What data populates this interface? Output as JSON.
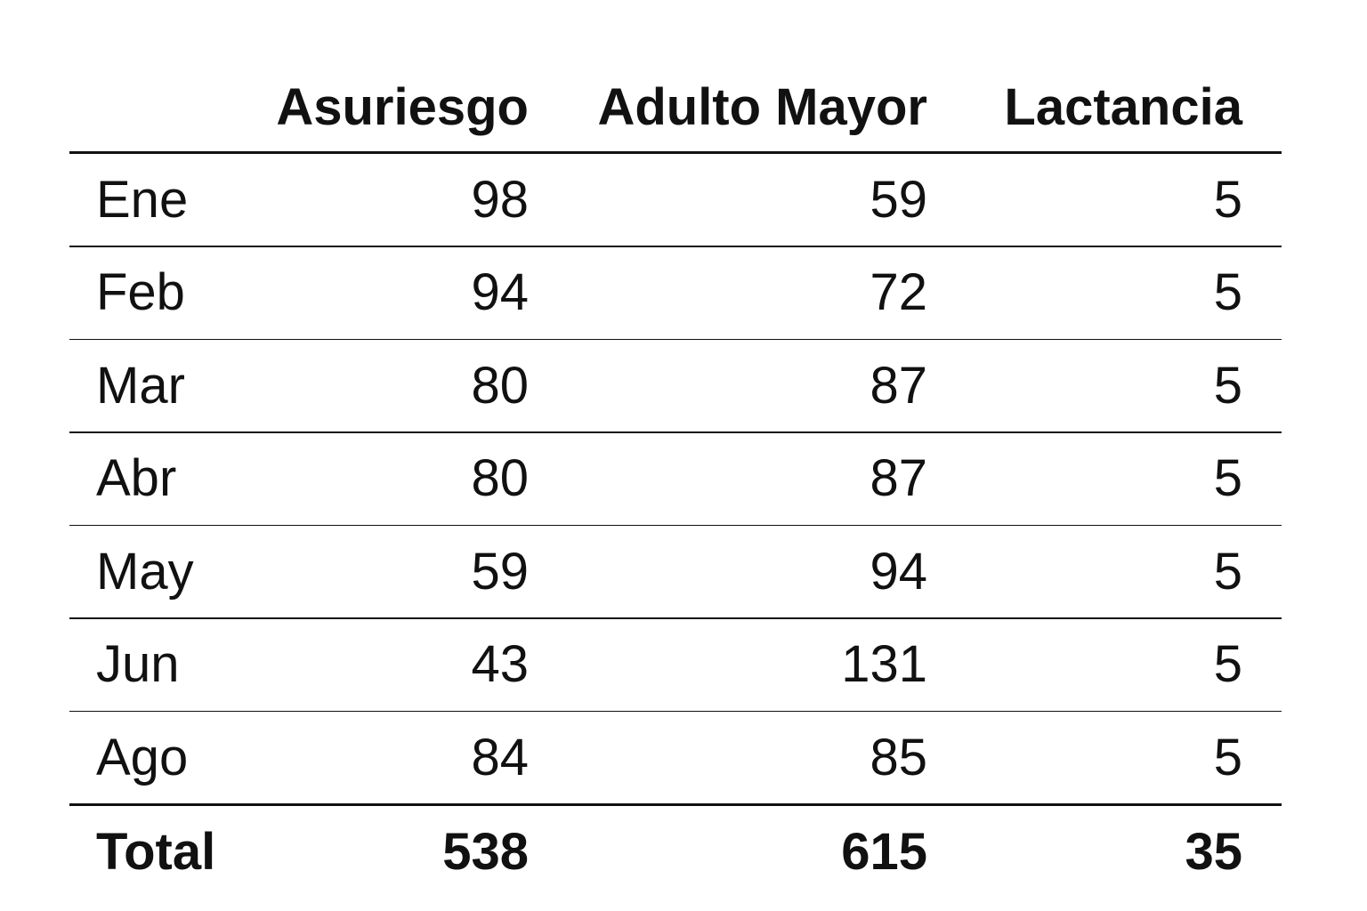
{
  "chart_data": {
    "type": "table",
    "columns": [
      "",
      "Asuriesgo",
      "Adulto Mayor",
      "Lactancia"
    ],
    "rows": [
      {
        "label": "Ene",
        "values": [
          "98",
          "59",
          "5"
        ]
      },
      {
        "label": "Feb",
        "values": [
          "94",
          "72",
          "5"
        ]
      },
      {
        "label": "Mar",
        "values": [
          "80",
          "87",
          "5"
        ]
      },
      {
        "label": "Abr",
        "values": [
          "80",
          "87",
          "5"
        ]
      },
      {
        "label": "May",
        "values": [
          "59",
          "94",
          "5"
        ]
      },
      {
        "label": "Jun",
        "values": [
          "43",
          "131",
          "5"
        ]
      },
      {
        "label": "Ago",
        "values": [
          "84",
          "85",
          "5"
        ]
      }
    ],
    "total": {
      "label": "Total",
      "values": [
        "538",
        "615",
        "35"
      ]
    }
  }
}
